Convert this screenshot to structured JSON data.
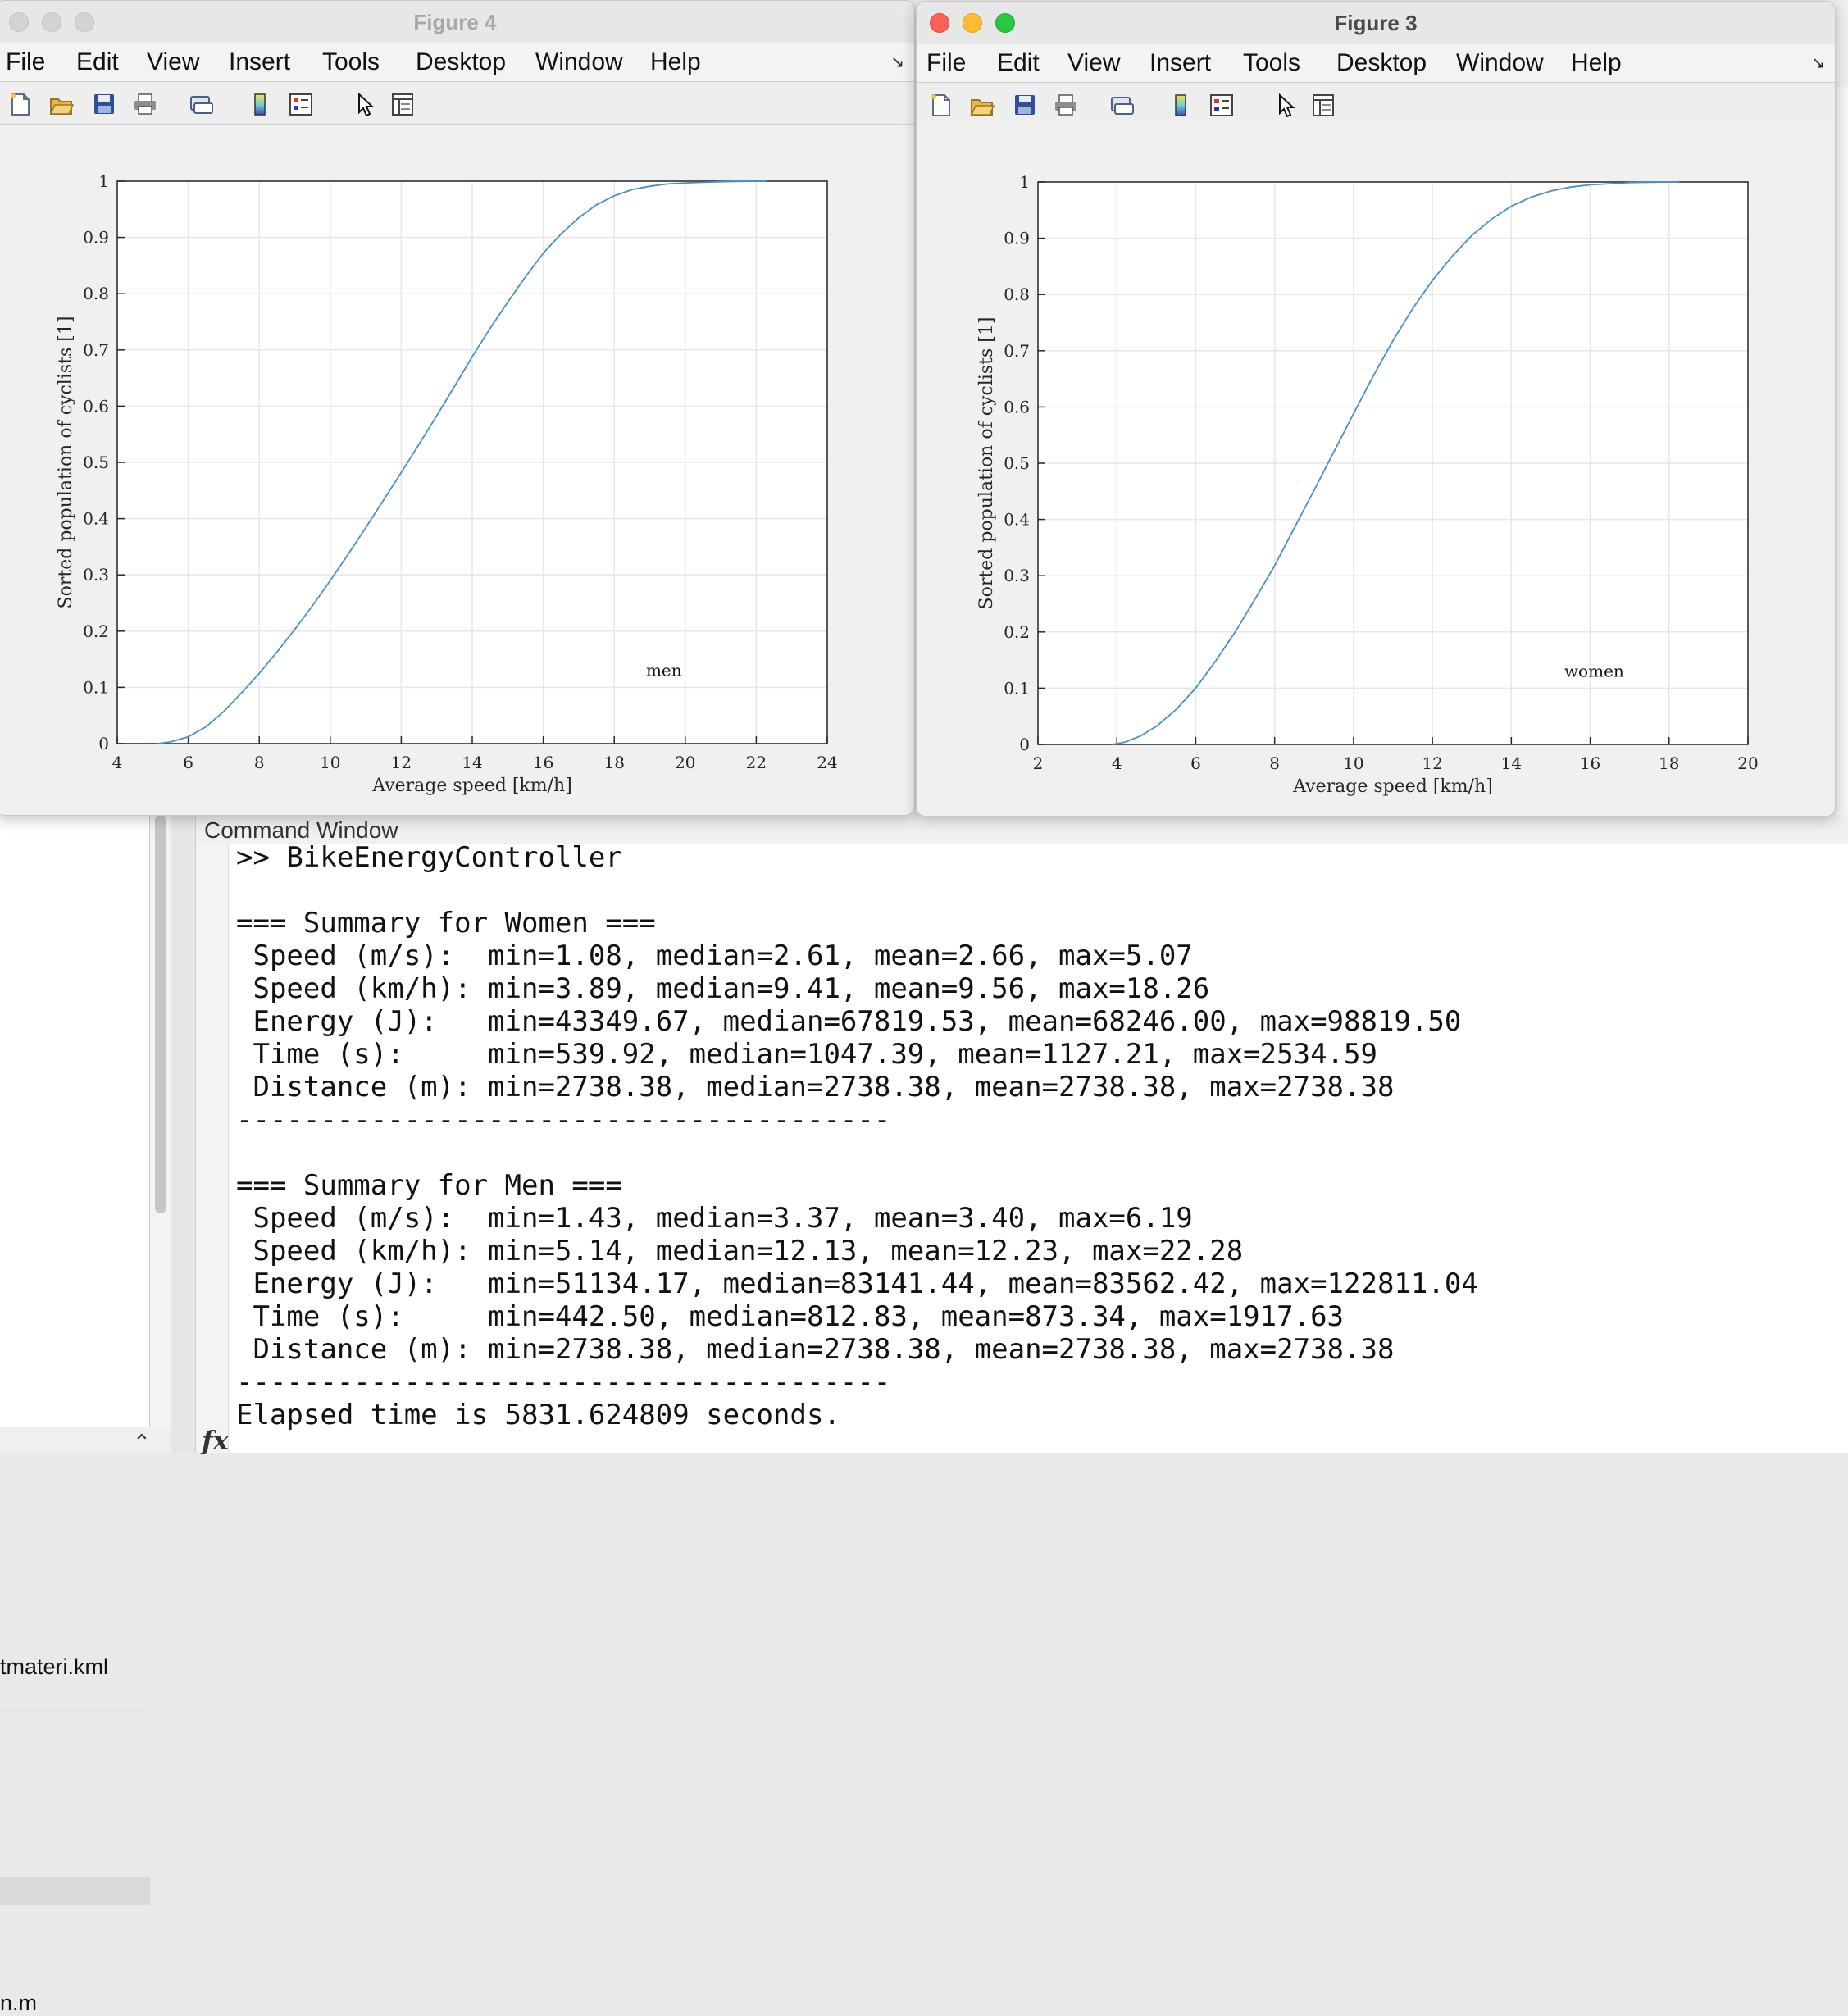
{
  "file_browser": {
    "items": [
      "tmateri.kml",
      "n.m"
    ]
  },
  "command_window": {
    "title": "Command Window",
    "lines": [
      ">> BikeEnergyController",
      "",
      "=== Summary for Women ===",
      " Speed (m/s):  min=1.08, median=2.61, mean=2.66, max=5.07",
      " Speed (km/h): min=3.89, median=9.41, mean=9.56, max=18.26",
      " Energy (J):   min=43349.67, median=67819.53, mean=68246.00, max=98819.50",
      " Time (s):     min=539.92, median=1047.39, mean=1127.21, max=2534.59",
      " Distance (m): min=2738.38, median=2738.38, mean=2738.38, max=2738.38",
      "---------------------------------------",
      "",
      "=== Summary for Men ===",
      " Speed (m/s):  min=1.43, median=3.37, mean=3.40, max=6.19",
      " Speed (km/h): min=5.14, median=12.13, mean=12.23, max=22.28",
      " Energy (J):   min=51134.17, median=83141.44, mean=83562.42, max=122811.04",
      " Time (s):     min=442.50, median=812.83, mean=873.34, max=1917.63",
      " Distance (m): min=2738.38, median=2738.38, mean=2738.38, max=2738.38",
      "---------------------------------------",
      "Elapsed time is 5831.624809 seconds."
    ],
    "fx_label": "fx"
  },
  "menu": [
    "File",
    "Edit",
    "View",
    "Insert",
    "Tools",
    "Desktop",
    "Window",
    "Help"
  ],
  "toolbar_icons": [
    "new-figure-icon",
    "open-file-icon",
    "save-icon",
    "print-icon",
    "link-icon",
    "colorbar-icon",
    "legend-icon",
    "pointer-icon",
    "property-inspector-icon"
  ],
  "line_color": "#4a8fc6",
  "figures": [
    {
      "id": "fig4",
      "title": "Figure 4",
      "active": false,
      "chart_data": {
        "type": "line",
        "xlabel": "Average speed [km/h]",
        "ylabel": "Sorted population of cyclists [1]",
        "xlim": [
          4,
          24
        ],
        "ylim": [
          0,
          1
        ],
        "xticks": [
          "4",
          "6",
          "8",
          "10",
          "12",
          "14",
          "16",
          "18",
          "20",
          "22",
          "24"
        ],
        "yticks": [
          "0",
          "0.1",
          "0.2",
          "0.3",
          "0.4",
          "0.5",
          "0.6",
          "0.7",
          "0.8",
          "0.9",
          "1"
        ],
        "grid": true,
        "annotation": "men",
        "annotation_xy": [
          19.4,
          0.12
        ],
        "series": [
          {
            "x": [
              5.14,
              5.5,
              6,
              6.5,
              7,
              7.5,
              8,
              8.5,
              9,
              9.5,
              10,
              10.5,
              11,
              11.5,
              12,
              12.5,
              13,
              13.5,
              14,
              14.5,
              15,
              15.5,
              16,
              16.5,
              17,
              17.5,
              18,
              18.5,
              19,
              19.5,
              20,
              20.5,
              21,
              21.5,
              22,
              22.28
            ],
            "y": [
              0,
              0.003,
              0.012,
              0.03,
              0.057,
              0.09,
              0.125,
              0.163,
              0.203,
              0.245,
              0.29,
              0.336,
              0.384,
              0.433,
              0.482,
              0.532,
              0.583,
              0.635,
              0.688,
              0.738,
              0.785,
              0.83,
              0.872,
              0.906,
              0.935,
              0.958,
              0.974,
              0.985,
              0.991,
              0.995,
              0.997,
              0.998,
              0.999,
              0.9995,
              1,
              1
            ]
          }
        ]
      }
    },
    {
      "id": "fig3",
      "title": "Figure 3",
      "active": true,
      "chart_data": {
        "type": "line",
        "xlabel": "Average speed [km/h]",
        "ylabel": "Sorted population of cyclists [1]",
        "xlim": [
          2,
          20
        ],
        "ylim": [
          0,
          1
        ],
        "xticks": [
          "2",
          "4",
          "6",
          "8",
          "10",
          "12",
          "14",
          "16",
          "18",
          "20"
        ],
        "yticks": [
          "0",
          "0.1",
          "0.2",
          "0.3",
          "0.4",
          "0.5",
          "0.6",
          "0.7",
          "0.8",
          "0.9",
          "1"
        ],
        "grid": true,
        "annotation": "women",
        "annotation_xy": [
          16.1,
          0.12
        ],
        "series": [
          {
            "x": [
              3.89,
              4.2,
              4.6,
              5,
              5.5,
              6,
              6.5,
              7,
              7.5,
              8,
              8.5,
              9,
              9.5,
              10,
              10.5,
              11,
              11.5,
              12,
              12.5,
              13,
              13.5,
              14,
              14.5,
              15,
              15.5,
              16,
              16.5,
              17,
              17.5,
              18,
              18.26
            ],
            "y": [
              0,
              0.004,
              0.015,
              0.032,
              0.062,
              0.1,
              0.148,
              0.2,
              0.258,
              0.318,
              0.385,
              0.452,
              0.52,
              0.588,
              0.655,
              0.718,
              0.775,
              0.825,
              0.868,
              0.905,
              0.934,
              0.957,
              0.973,
              0.984,
              0.991,
              0.995,
              0.997,
              0.999,
              0.9995,
              1,
              1
            ]
          }
        ]
      }
    }
  ]
}
